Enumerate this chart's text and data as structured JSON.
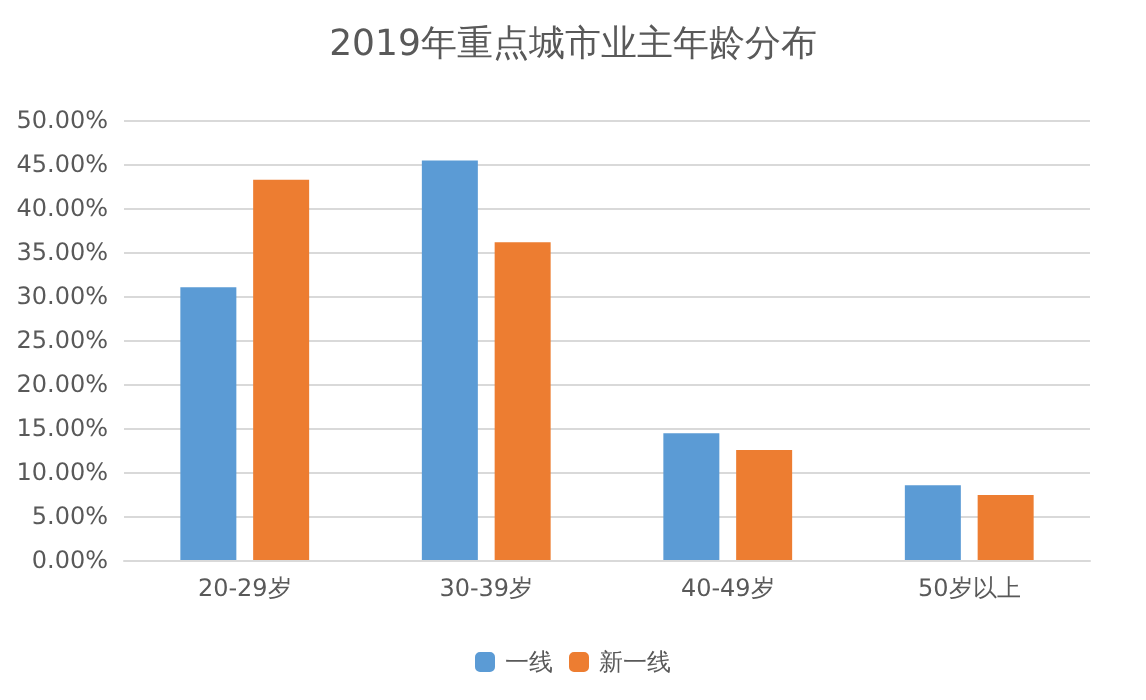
{
  "chart_data": {
    "type": "bar",
    "title": "2019年重点城市业主年龄分布",
    "categories": [
      "20-29岁",
      "30-39岁",
      "40-49岁",
      "50岁以上"
    ],
    "series": [
      {
        "name": "一线",
        "color": "#5b9bd5",
        "values": [
          31.0,
          45.4,
          14.4,
          8.5
        ]
      },
      {
        "name": "新一线",
        "color": "#ed7d31",
        "values": [
          43.2,
          36.1,
          12.5,
          7.4
        ]
      }
    ],
    "ylim": [
      0,
      50
    ],
    "yticks": [
      {
        "value": 0,
        "label": "0.00%"
      },
      {
        "value": 5,
        "label": "5.00%"
      },
      {
        "value": 10,
        "label": "10.00%"
      },
      {
        "value": 15,
        "label": "15.00%"
      },
      {
        "value": 20,
        "label": "20.00%"
      },
      {
        "value": 25,
        "label": "25.00%"
      },
      {
        "value": 30,
        "label": "30.00%"
      },
      {
        "value": 35,
        "label": "35.00%"
      },
      {
        "value": 40,
        "label": "40.00%"
      },
      {
        "value": 45,
        "label": "45.00%"
      },
      {
        "value": 50,
        "label": "50.00%"
      }
    ],
    "grid": "y",
    "legend": "bottom"
  }
}
